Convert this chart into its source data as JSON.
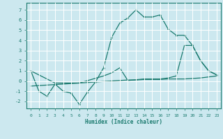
{
  "xlabel": "Humidex (Indice chaleur)",
  "bg_color": "#cce8ef",
  "grid_color": "#ffffff",
  "line_color": "#1a7a6e",
  "xlim": [
    -0.5,
    23.5
  ],
  "ylim": [
    -2.7,
    7.7
  ],
  "xticks": [
    0,
    1,
    2,
    3,
    4,
    5,
    6,
    7,
    8,
    9,
    10,
    11,
    12,
    13,
    14,
    15,
    16,
    17,
    18,
    19,
    20,
    21,
    22,
    23
  ],
  "yticks": [
    -2,
    -1,
    0,
    1,
    2,
    3,
    4,
    5,
    6,
    7
  ],
  "line1_x": [
    0,
    1,
    2,
    3,
    4,
    5,
    6,
    7,
    8,
    9,
    10,
    11,
    12,
    13,
    14,
    15,
    16,
    17,
    18,
    19,
    20,
    21,
    22,
    23
  ],
  "line1_y": [
    1.0,
    -1.0,
    -1.5,
    -0.3,
    -1.0,
    -1.2,
    -2.3,
    -1.1,
    -0.1,
    1.3,
    4.3,
    5.7,
    6.2,
    7.0,
    6.3,
    6.3,
    6.5,
    5.1,
    4.5,
    4.5,
    3.5,
    2.0,
    1.0,
    0.6
  ],
  "line2_x": [
    0,
    1,
    2,
    3,
    4,
    5,
    6,
    7,
    8,
    9,
    10,
    11,
    12,
    13,
    14,
    15,
    16,
    17,
    18,
    19,
    20,
    21,
    22,
    23
  ],
  "line2_y": [
    -0.5,
    -0.45,
    -0.4,
    -0.35,
    -0.3,
    -0.25,
    -0.2,
    -0.15,
    -0.1,
    -0.05,
    0.0,
    0.05,
    0.1,
    0.1,
    0.15,
    0.15,
    0.15,
    0.2,
    0.2,
    0.2,
    0.25,
    0.3,
    0.4,
    0.5
  ],
  "line3_x": [
    0,
    3,
    6,
    9,
    10,
    11,
    12,
    14,
    15,
    16,
    17,
    18,
    19,
    20,
    21,
    22,
    23
  ],
  "line3_y": [
    1.0,
    -0.2,
    -0.2,
    0.5,
    0.8,
    1.3,
    0.05,
    0.2,
    0.2,
    0.2,
    0.3,
    0.5,
    3.5,
    3.5,
    2.0,
    1.0,
    0.6
  ]
}
